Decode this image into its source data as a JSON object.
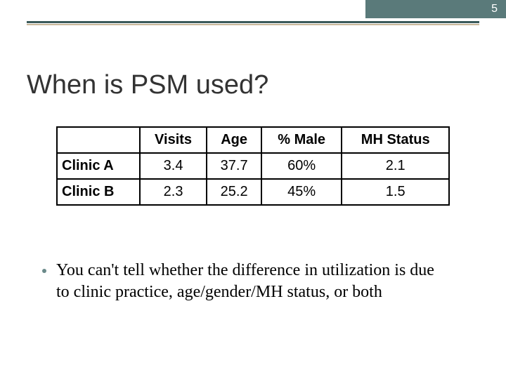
{
  "slide": {
    "number": "5",
    "title": "When is PSM used?",
    "bullet": "You can't tell whether the difference in utilization is due to clinic practice, age/gender/MH status, or both"
  },
  "table": {
    "type": "table",
    "columns": [
      "",
      "Visits",
      "Age",
      "% Male",
      "MH Status"
    ],
    "rows": [
      {
        "label": "Clinic A",
        "cells": [
          "3.4",
          "37.7",
          "60%",
          "2.1"
        ]
      },
      {
        "label": "Clinic B",
        "cells": [
          "2.3",
          "25.2",
          "45%",
          "1.5"
        ]
      }
    ],
    "border_color": "#000000",
    "header_fontweight": 700,
    "cell_fontsize": 20,
    "font_family": "Arial"
  },
  "style": {
    "background_color": "#ffffff",
    "header_bar_color": "#5a7a7a",
    "accent_dark": "#3a5a5a",
    "accent_light": "#c9b89a",
    "title_fontsize": 38,
    "title_color": "#333333",
    "bullet_fontsize": 24,
    "bullet_dot_color": "#6a8a8a"
  }
}
